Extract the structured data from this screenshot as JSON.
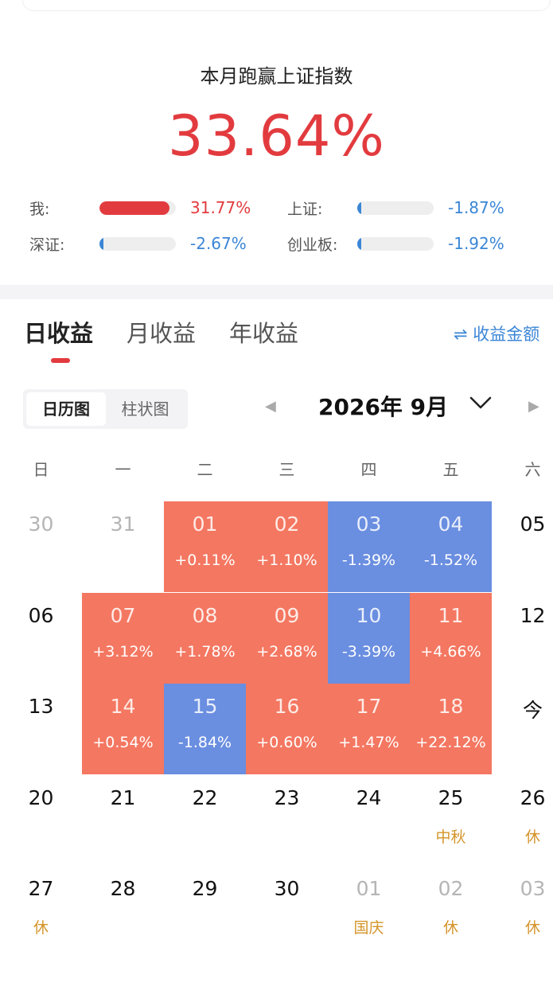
{
  "summary": {
    "title": "本月跑赢上证指数",
    "value": "33.64%"
  },
  "comparison": [
    {
      "label": "我:",
      "value": "31.77%",
      "fill": 0.92,
      "color": "#e23b3f"
    },
    {
      "label": "上证:",
      "value": "-1.87%",
      "fill": 0.05,
      "color": "#3b86d6"
    },
    {
      "label": "深证:",
      "value": "-2.67%",
      "fill": 0.05,
      "color": "#3b86d6"
    },
    {
      "label": "创业板:",
      "value": "-1.92%",
      "fill": 0.05,
      "color": "#3b86d6"
    }
  ],
  "tabs": [
    "日收益",
    "月收益",
    "年收益"
  ],
  "amount_toggle": "⇌ 收益金额",
  "view_switch": [
    "日历图",
    "柱状图"
  ],
  "month": {
    "prev_glyph": "◀",
    "title": "2026年 9月",
    "next_glyph": "▶"
  },
  "weekdays": [
    "日",
    "一",
    "二",
    "三",
    "四",
    "五",
    "六"
  ],
  "colors": {
    "up": "#f47761",
    "down": "#6a8ee0",
    "holiday": "#d4942a",
    "accent": "#e23b3f"
  },
  "calendar": {
    "weeks": [
      [
        {
          "day": "30",
          "state": "muted"
        },
        {
          "day": "31",
          "state": "muted"
        },
        {
          "day": "01",
          "state": "up",
          "sub": "+0.11%"
        },
        {
          "day": "02",
          "state": "up",
          "sub": "+1.10%"
        },
        {
          "day": "03",
          "state": "down",
          "sub": "-1.39%"
        },
        {
          "day": "04",
          "state": "down",
          "sub": "-1.52%"
        },
        {
          "day": "05",
          "state": "plain"
        }
      ],
      [
        {
          "day": "06",
          "state": "plain"
        },
        {
          "day": "07",
          "state": "up",
          "sub": "+3.12%"
        },
        {
          "day": "08",
          "state": "up",
          "sub": "+1.78%"
        },
        {
          "day": "09",
          "state": "up",
          "sub": "+2.68%"
        },
        {
          "day": "10",
          "state": "down",
          "sub": "-3.39%"
        },
        {
          "day": "11",
          "state": "up",
          "sub": "+4.66%"
        },
        {
          "day": "12",
          "state": "plain"
        }
      ],
      [
        {
          "day": "13",
          "state": "plain"
        },
        {
          "day": "14",
          "state": "up",
          "sub": "+0.54%"
        },
        {
          "day": "15",
          "state": "down",
          "sub": "-1.84%"
        },
        {
          "day": "16",
          "state": "up",
          "sub": "+0.60%"
        },
        {
          "day": "17",
          "state": "up",
          "sub": "+1.47%"
        },
        {
          "day": "18",
          "state": "up",
          "sub": "+22.12%"
        },
        {
          "day": "今",
          "state": "plain"
        }
      ],
      [
        {
          "day": "20",
          "state": "plain"
        },
        {
          "day": "21",
          "state": "plain"
        },
        {
          "day": "22",
          "state": "plain"
        },
        {
          "day": "23",
          "state": "plain"
        },
        {
          "day": "24",
          "state": "plain"
        },
        {
          "day": "25",
          "state": "plain",
          "holiday": "中秋"
        },
        {
          "day": "26",
          "state": "plain",
          "holiday": "休"
        }
      ],
      [
        {
          "day": "27",
          "state": "plain",
          "holiday": "休"
        },
        {
          "day": "28",
          "state": "plain"
        },
        {
          "day": "29",
          "state": "plain"
        },
        {
          "day": "30",
          "state": "plain"
        },
        {
          "day": "01",
          "state": "muted",
          "holiday": "国庆"
        },
        {
          "day": "02",
          "state": "muted",
          "holiday": "休"
        },
        {
          "day": "03",
          "state": "muted",
          "holiday": "休"
        }
      ]
    ]
  }
}
